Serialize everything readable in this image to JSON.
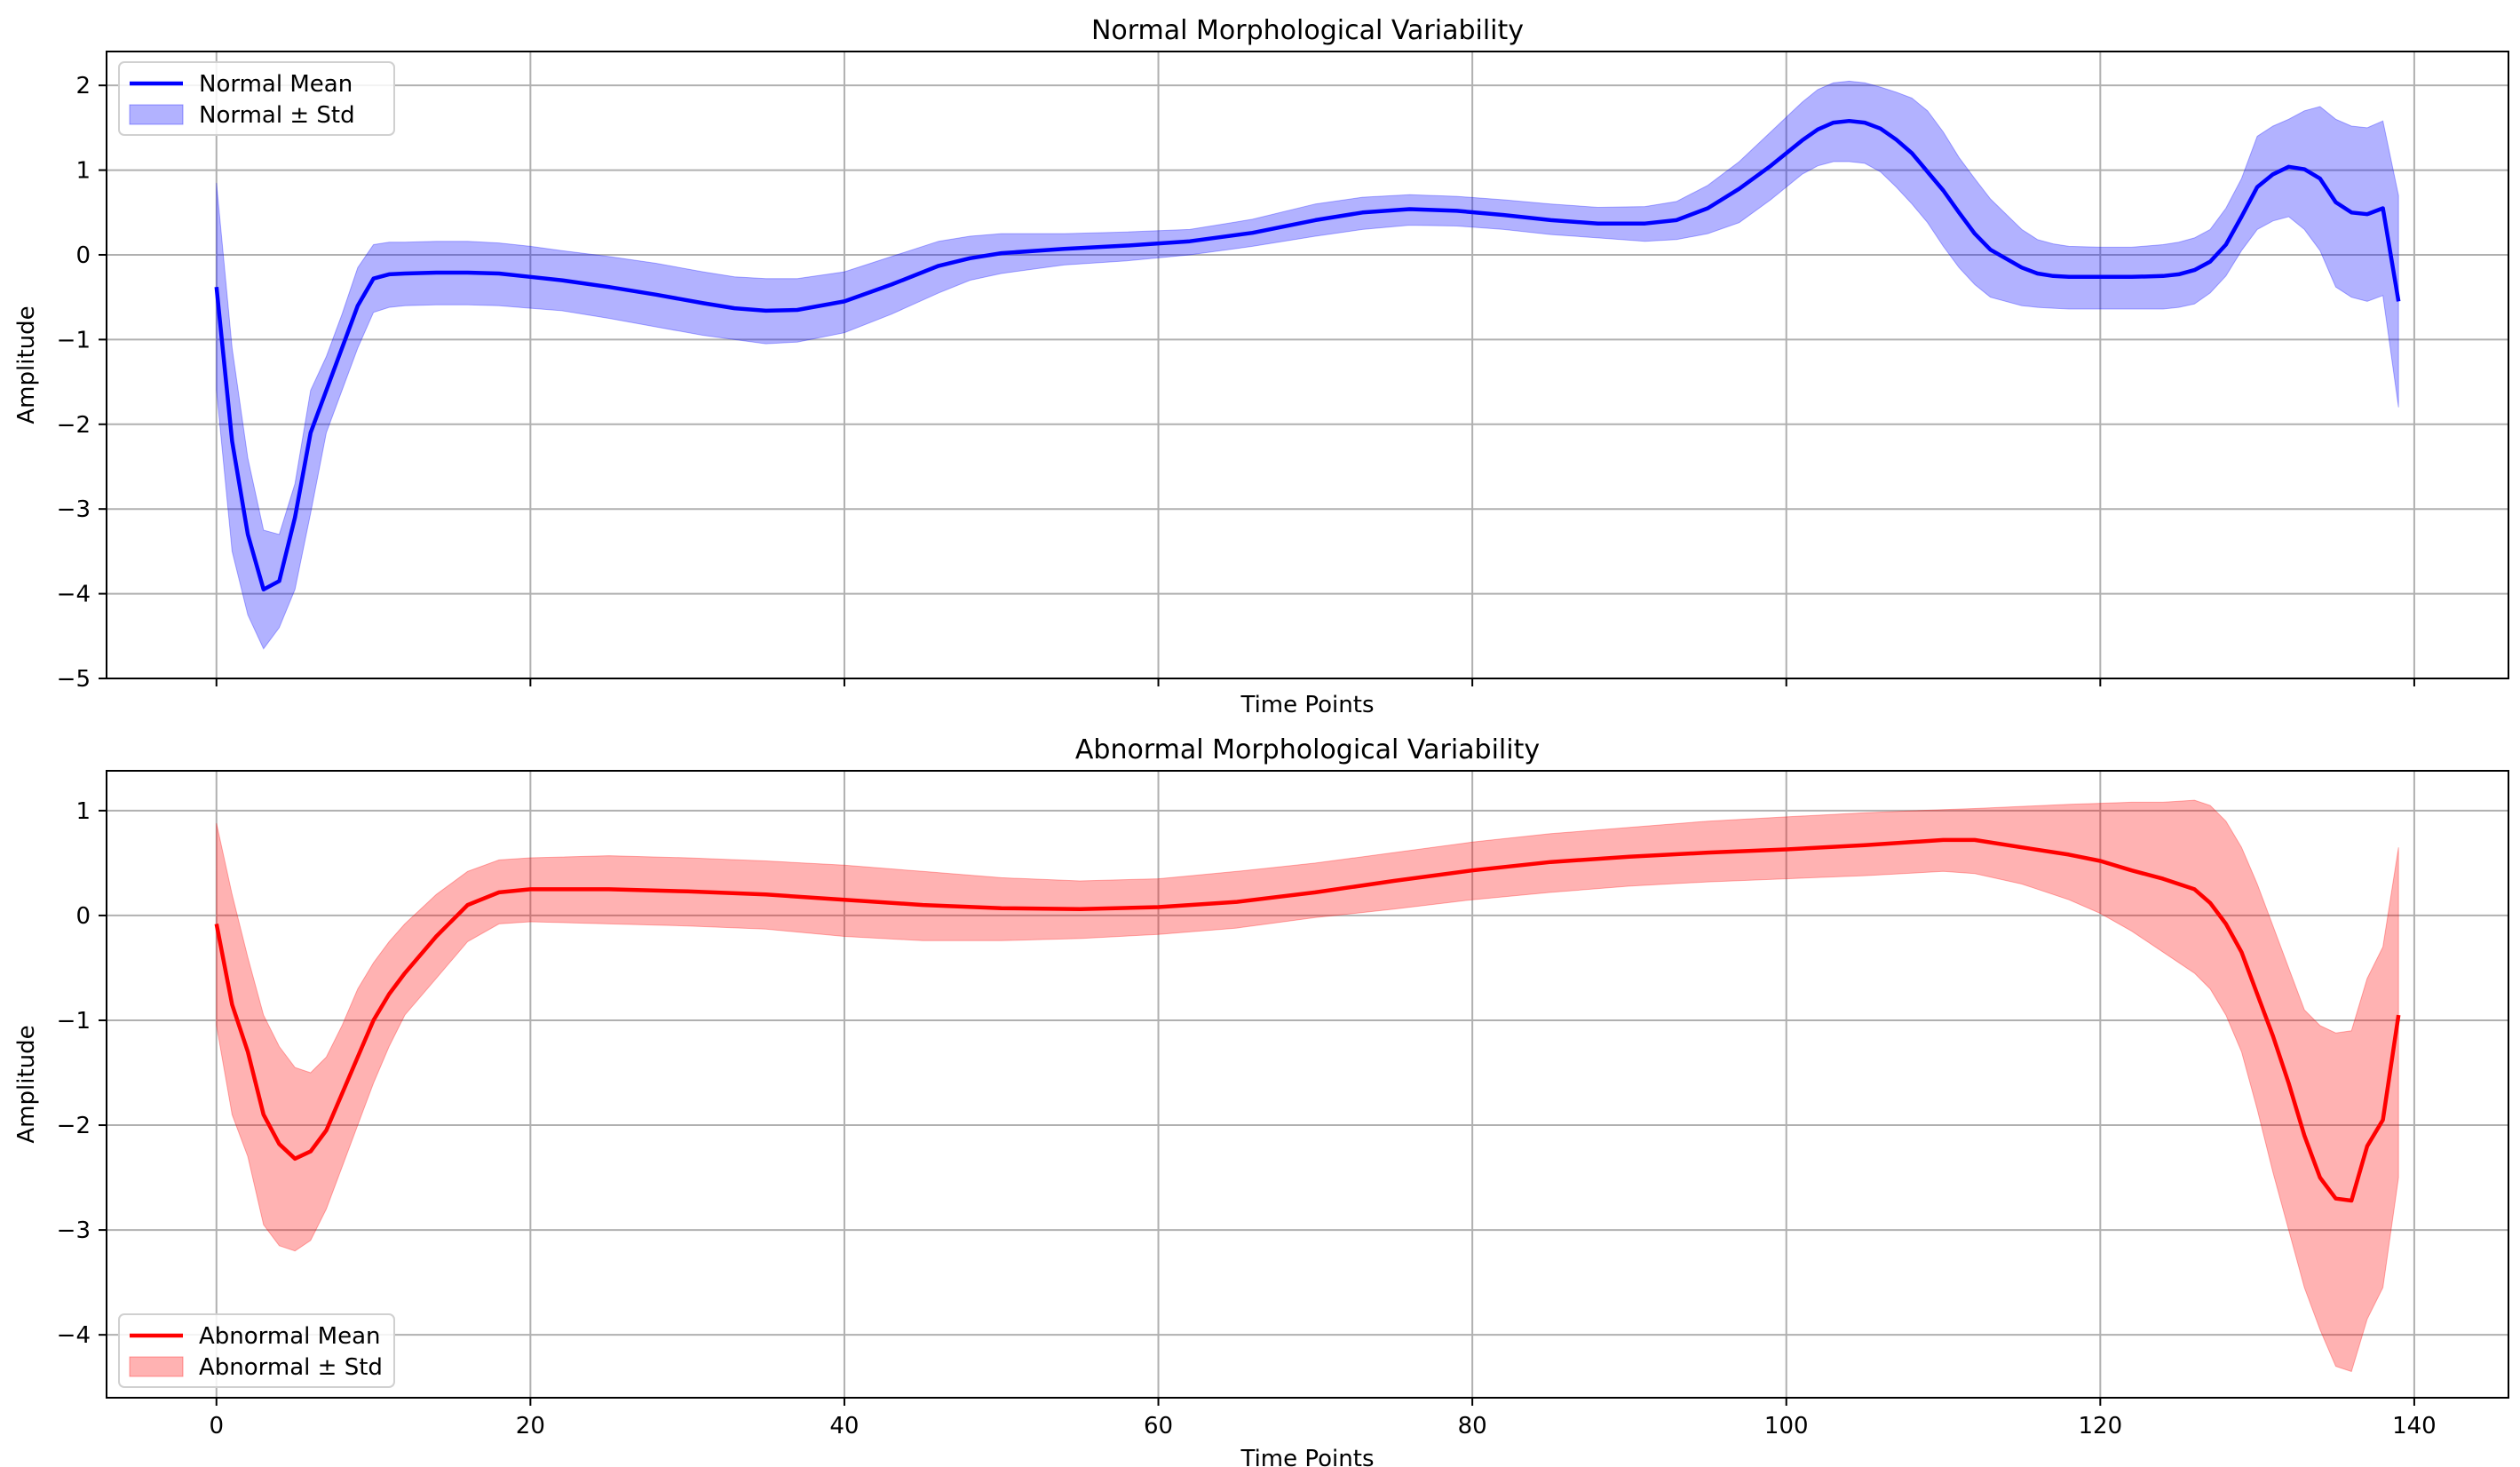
{
  "chart_data": [
    {
      "type": "line",
      "title": "Normal Morphological Variability",
      "xlabel": "Time Points",
      "ylabel": "Amplitude",
      "xlim": [
        -7,
        146
      ],
      "ylim": [
        -5,
        2.4
      ],
      "xticks": [
        0,
        20,
        40,
        60,
        80,
        100,
        120,
        140
      ],
      "show_xtick_labels": false,
      "yticks": [
        2,
        1,
        0,
        -1,
        -2,
        -3,
        -4,
        -5
      ],
      "grid": true,
      "legend_position": "upper-left",
      "color": "#0000ff",
      "fill_color": "#0000ff",
      "x": [
        0,
        1,
        2,
        3,
        4,
        5,
        6,
        7,
        8,
        9,
        10,
        11,
        12,
        14,
        16,
        18,
        20,
        22,
        25,
        28,
        31,
        33,
        35,
        37,
        40,
        43,
        46,
        48,
        50,
        54,
        58,
        62,
        66,
        70,
        73,
        76,
        79,
        82,
        85,
        88,
        91,
        93,
        95,
        97,
        99,
        101,
        102,
        103,
        104,
        105,
        106,
        107,
        108,
        109,
        110,
        111,
        112,
        113,
        115,
        116,
        117,
        118,
        120,
        122,
        124,
        125,
        126,
        127,
        128,
        129,
        130,
        131,
        132,
        133,
        134,
        135,
        136,
        137,
        138,
        139
      ],
      "series": [
        {
          "name": "Normal Mean",
          "mean": [
            -0.38,
            -2.2,
            -3.3,
            -3.95,
            -3.85,
            -3.1,
            -2.1,
            -1.6,
            -1.1,
            -0.6,
            -0.28,
            -0.23,
            -0.22,
            -0.21,
            -0.21,
            -0.22,
            -0.26,
            -0.3,
            -0.38,
            -0.47,
            -0.57,
            -0.63,
            -0.66,
            -0.65,
            -0.55,
            -0.35,
            -0.13,
            -0.04,
            0.02,
            0.07,
            0.11,
            0.16,
            0.26,
            0.41,
            0.5,
            0.54,
            0.52,
            0.47,
            0.41,
            0.37,
            0.37,
            0.41,
            0.55,
            0.78,
            1.05,
            1.35,
            1.48,
            1.56,
            1.58,
            1.56,
            1.49,
            1.36,
            1.2,
            0.98,
            0.76,
            0.5,
            0.25,
            0.06,
            -0.15,
            -0.22,
            -0.25,
            -0.26,
            -0.26,
            -0.26,
            -0.25,
            -0.23,
            -0.18,
            -0.08,
            0.12,
            0.45,
            0.8,
            0.95,
            1.04,
            1.01,
            0.9,
            0.62,
            0.5,
            0.48,
            0.55,
            -0.55
          ]
        },
        {
          "name": "Normal ± Std",
          "upper": [
            0.85,
            -1.1,
            -2.4,
            -3.25,
            -3.3,
            -2.7,
            -1.6,
            -1.2,
            -0.7,
            -0.15,
            0.12,
            0.15,
            0.15,
            0.16,
            0.16,
            0.14,
            0.1,
            0.05,
            -0.02,
            -0.1,
            -0.2,
            -0.26,
            -0.28,
            -0.28,
            -0.2,
            -0.02,
            0.16,
            0.22,
            0.25,
            0.25,
            0.27,
            0.3,
            0.42,
            0.6,
            0.68,
            0.71,
            0.69,
            0.65,
            0.6,
            0.56,
            0.57,
            0.63,
            0.82,
            1.1,
            1.45,
            1.8,
            1.95,
            2.03,
            2.05,
            2.03,
            1.98,
            1.92,
            1.85,
            1.7,
            1.45,
            1.15,
            0.9,
            0.66,
            0.3,
            0.18,
            0.13,
            0.1,
            0.09,
            0.09,
            0.12,
            0.15,
            0.2,
            0.3,
            0.55,
            0.9,
            1.4,
            1.52,
            1.6,
            1.7,
            1.75,
            1.6,
            1.52,
            1.5,
            1.58,
            0.7
          ],
          "lower": [
            -1.6,
            -3.5,
            -4.25,
            -4.65,
            -4.4,
            -3.95,
            -3.05,
            -2.1,
            -1.6,
            -1.1,
            -0.68,
            -0.62,
            -0.6,
            -0.59,
            -0.59,
            -0.6,
            -0.63,
            -0.66,
            -0.75,
            -0.85,
            -0.95,
            -1.0,
            -1.05,
            -1.03,
            -0.92,
            -0.7,
            -0.45,
            -0.3,
            -0.22,
            -0.12,
            -0.07,
            0.0,
            0.1,
            0.22,
            0.3,
            0.35,
            0.34,
            0.3,
            0.24,
            0.2,
            0.16,
            0.18,
            0.25,
            0.38,
            0.65,
            0.95,
            1.05,
            1.1,
            1.1,
            1.08,
            0.98,
            0.8,
            0.6,
            0.38,
            0.1,
            -0.15,
            -0.35,
            -0.5,
            -0.6,
            -0.62,
            -0.63,
            -0.64,
            -0.64,
            -0.64,
            -0.64,
            -0.62,
            -0.58,
            -0.45,
            -0.25,
            0.05,
            0.3,
            0.4,
            0.45,
            0.3,
            0.05,
            -0.38,
            -0.5,
            -0.55,
            -0.48,
            -1.8
          ]
        }
      ]
    },
    {
      "type": "line",
      "title": "Abnormal Morphological Variability",
      "xlabel": "Time Points",
      "ylabel": "Amplitude",
      "xlim": [
        -7,
        146
      ],
      "ylim": [
        -4.6,
        1.38
      ],
      "xticks": [
        0,
        20,
        40,
        60,
        80,
        100,
        120,
        140
      ],
      "show_xtick_labels": true,
      "yticks": [
        1,
        0,
        -1,
        -2,
        -3,
        -4
      ],
      "grid": true,
      "legend_position": "lower-left",
      "color": "#ff0000",
      "fill_color": "#ff0000",
      "x": [
        0,
        1,
        2,
        3,
        4,
        5,
        6,
        7,
        8,
        9,
        10,
        11,
        12,
        14,
        16,
        18,
        20,
        25,
        30,
        35,
        40,
        45,
        50,
        55,
        60,
        65,
        70,
        75,
        80,
        85,
        90,
        95,
        100,
        105,
        110,
        112,
        115,
        118,
        120,
        122,
        124,
        126,
        127,
        128,
        129,
        130,
        131,
        132,
        133,
        134,
        135,
        136,
        137,
        138,
        139
      ],
      "series": [
        {
          "name": "Abnormal Mean",
          "mean": [
            -0.08,
            -0.85,
            -1.3,
            -1.9,
            -2.18,
            -2.32,
            -2.25,
            -2.05,
            -1.7,
            -1.35,
            -1.0,
            -0.75,
            -0.55,
            -0.2,
            0.1,
            0.22,
            0.25,
            0.25,
            0.23,
            0.2,
            0.15,
            0.1,
            0.07,
            0.06,
            0.08,
            0.13,
            0.22,
            0.33,
            0.43,
            0.51,
            0.56,
            0.6,
            0.63,
            0.67,
            0.72,
            0.72,
            0.65,
            0.58,
            0.52,
            0.43,
            0.35,
            0.25,
            0.12,
            -0.08,
            -0.35,
            -0.75,
            -1.15,
            -1.6,
            -2.1,
            -2.5,
            -2.7,
            -2.72,
            -2.2,
            -1.95,
            -0.95
          ]
        },
        {
          "name": "Abnormal ± Std",
          "upper": [
            0.88,
            0.2,
            -0.4,
            -0.95,
            -1.25,
            -1.45,
            -1.5,
            -1.35,
            -1.05,
            -0.7,
            -0.45,
            -0.25,
            -0.08,
            0.2,
            0.42,
            0.53,
            0.55,
            0.57,
            0.55,
            0.52,
            0.48,
            0.42,
            0.36,
            0.33,
            0.35,
            0.42,
            0.5,
            0.6,
            0.7,
            0.78,
            0.84,
            0.9,
            0.94,
            0.98,
            1.01,
            1.02,
            1.04,
            1.06,
            1.07,
            1.08,
            1.08,
            1.1,
            1.05,
            0.9,
            0.65,
            0.3,
            -0.1,
            -0.5,
            -0.9,
            -1.05,
            -1.12,
            -1.1,
            -0.6,
            -0.3,
            0.65
          ],
          "lower": [
            -1.05,
            -1.9,
            -2.3,
            -2.95,
            -3.15,
            -3.2,
            -3.1,
            -2.8,
            -2.4,
            -2.0,
            -1.6,
            -1.25,
            -0.95,
            -0.6,
            -0.25,
            -0.08,
            -0.06,
            -0.08,
            -0.1,
            -0.13,
            -0.2,
            -0.24,
            -0.24,
            -0.22,
            -0.18,
            -0.12,
            -0.02,
            0.06,
            0.15,
            0.22,
            0.28,
            0.32,
            0.35,
            0.38,
            0.42,
            0.4,
            0.3,
            0.15,
            0.02,
            -0.15,
            -0.35,
            -0.55,
            -0.7,
            -0.95,
            -1.3,
            -1.85,
            -2.45,
            -3.0,
            -3.55,
            -3.95,
            -4.3,
            -4.35,
            -3.85,
            -3.55,
            -2.5
          ]
        }
      ]
    }
  ]
}
